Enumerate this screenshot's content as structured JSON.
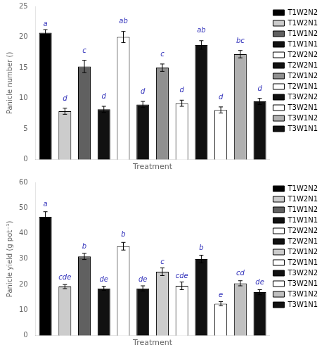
{
  "chart_data": [
    {
      "type": "bar",
      "ylabel": "Panicle number ()",
      "xlabel": "Treatment",
      "categories": [
        "T1W2N2",
        "T1W2N1",
        "T1W1N2",
        "T1W1N1",
        "T2W2N2",
        "T2W2N1",
        "T2W1N2",
        "T2W1N1",
        "T3W2N2",
        "T3W2N1",
        "T3W1N2",
        "T3W1N1"
      ],
      "values": [
        20.7,
        7.9,
        15.2,
        8.2,
        20.0,
        9.0,
        15.0,
        9.2,
        18.7,
        8.1,
        17.2,
        9.5
      ],
      "errors": [
        0.5,
        0.5,
        1.0,
        0.5,
        0.9,
        0.5,
        0.6,
        0.5,
        0.7,
        0.5,
        0.6,
        0.5
      ],
      "colors": [
        "black",
        "#cccccc",
        "#606060",
        "#111111",
        "white",
        "#111111",
        "#909090",
        "white",
        "#111111",
        "white",
        "#b0b0b0",
        "#111111"
      ],
      "annotations": [
        {
          "text": "a",
          "x": "T1W2N2",
          "y": 21.5,
          "color": "#3333bb"
        },
        {
          "text": "d",
          "x": "T1W2N1",
          "y": 9.3,
          "color": "#3333bb"
        },
        {
          "text": "c",
          "x": "T1W1N2",
          "y": 17.2,
          "color": "#3333bb"
        },
        {
          "text": "d",
          "x": "T1W1N1",
          "y": 9.7,
          "color": "#3333bb"
        },
        {
          "text": "ab",
          "x": "T2W2N2",
          "y": 22.0,
          "color": "#3333bb"
        },
        {
          "text": "d",
          "x": "T2W2N1",
          "y": 10.5,
          "color": "#3333bb"
        },
        {
          "text": "c",
          "x": "T2W1N2",
          "y": 16.6,
          "color": "#3333bb"
        },
        {
          "text": "d",
          "x": "T2W1N1",
          "y": 10.7,
          "color": "#3333bb"
        },
        {
          "text": "ab",
          "x": "T3W2N2",
          "y": 20.5,
          "color": "#3333bb"
        },
        {
          "text": "d",
          "x": "T3W2N1",
          "y": 9.6,
          "color": "#3333bb"
        },
        {
          "text": "bc",
          "x": "T3W1N2",
          "y": 18.7,
          "color": "#3333bb"
        },
        {
          "text": "d",
          "x": "T3W1N1",
          "y": 11.0,
          "color": "#3333bb"
        }
      ],
      "ylim": [
        0,
        25
      ],
      "yticks": [
        0,
        5,
        10,
        15,
        20,
        25
      ],
      "grid": false,
      "legend": "right",
      "tick_labels": "y"
    },
    {
      "type": "bar",
      "ylabel": "Panicle yield (g pot⁻¹)",
      "xlabel": "Treatment",
      "categories": [
        "T1W2N2",
        "T1W2N1",
        "T1W1N2",
        "T1W1N1",
        "T2W2N2",
        "T2W2N1",
        "T2W1N2",
        "T2W1N1",
        "T3W2N2",
        "T3W2N1",
        "T3W1N2",
        "T3W1N1"
      ],
      "values": [
        46.5,
        19.2,
        31.0,
        18.5,
        35.0,
        18.5,
        25.0,
        19.5,
        30.0,
        12.5,
        20.5,
        17.0
      ],
      "errors": [
        2.0,
        0.8,
        1.2,
        0.8,
        1.5,
        1.0,
        1.5,
        1.5,
        1.5,
        0.8,
        1.0,
        1.0
      ],
      "colors": [
        "black",
        "#cccccc",
        "#606060",
        "#111111",
        "white",
        "#111111",
        "#cccccc",
        "white",
        "#111111",
        "white",
        "#c0c0c0",
        "#111111"
      ],
      "annotations": [
        {
          "text": "a",
          "x": "T1W2N2",
          "y": 50.0,
          "color": "#3333bb"
        },
        {
          "text": "cde",
          "x": "T1W2N1",
          "y": 21.2,
          "color": "#3333bb"
        },
        {
          "text": "b",
          "x": "T1W1N2",
          "y": 33.5,
          "color": "#3333bb"
        },
        {
          "text": "de",
          "x": "T1W1N1",
          "y": 20.5,
          "color": "#3333bb"
        },
        {
          "text": "b",
          "x": "T2W2N2",
          "y": 38.0,
          "color": "#3333bb"
        },
        {
          "text": "de",
          "x": "T2W2N1",
          "y": 20.5,
          "color": "#3333bb"
        },
        {
          "text": "c",
          "x": "T2W1N2",
          "y": 27.5,
          "color": "#3333bb"
        },
        {
          "text": "cde",
          "x": "T2W1N1",
          "y": 22.0,
          "color": "#3333bb"
        },
        {
          "text": "b",
          "x": "T3W2N2",
          "y": 33.0,
          "color": "#3333bb"
        },
        {
          "text": "e",
          "x": "T3W2N1",
          "y": 14.5,
          "color": "#3333bb"
        },
        {
          "text": "cd",
          "x": "T3W1N2",
          "y": 23.0,
          "color": "#3333bb"
        },
        {
          "text": "de",
          "x": "T3W1N1",
          "y": 19.5,
          "color": "#3333bb"
        }
      ],
      "ylim": [
        0,
        60
      ],
      "yticks": [
        0,
        10,
        20,
        30,
        40,
        50,
        60
      ],
      "grid": false,
      "legend": "right",
      "tick_labels": "y"
    }
  ]
}
